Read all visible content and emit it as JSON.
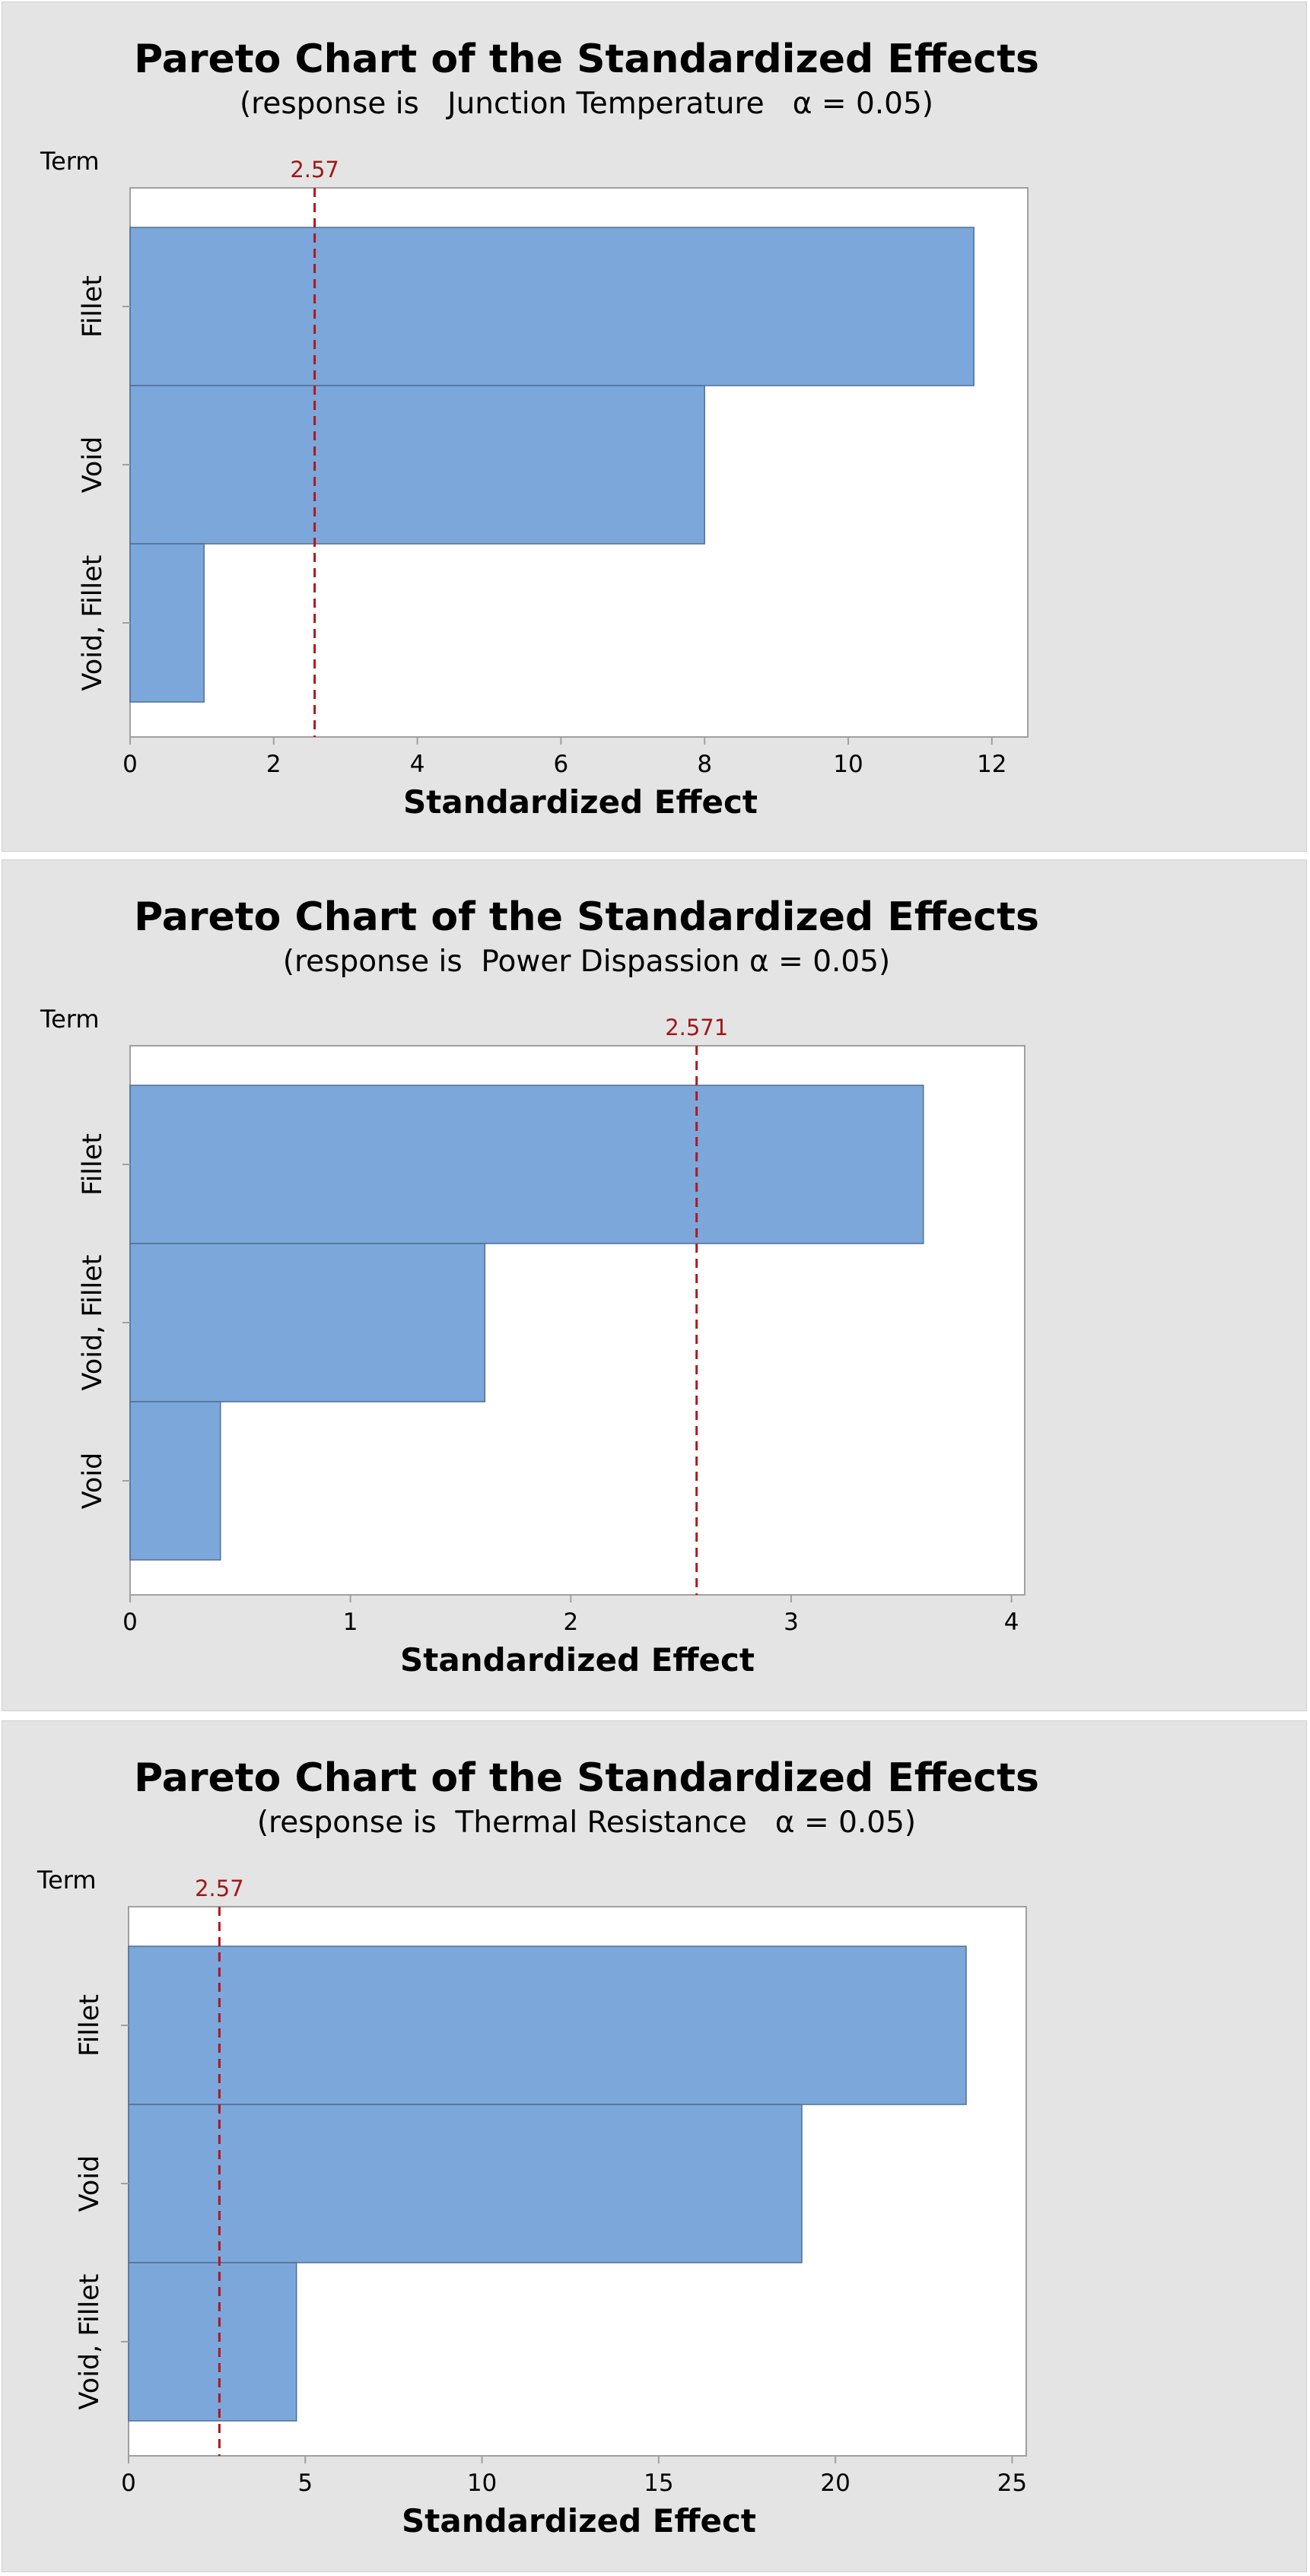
{
  "colors": {
    "panel_background": "#e4e4e4",
    "plot_background": "#ffffff",
    "bar_fill": "#7ba7da",
    "bar_stroke": "#4f6f94",
    "reference_line": "#b3161b",
    "axis": "#a0a0a0"
  },
  "chart_data": [
    {
      "type": "bar",
      "orientation": "horizontal",
      "title": "Pareto Chart of the Standardized Effects",
      "subtitle": "(response is   Junction Temperature   α = 0.05)",
      "term_label": "Term",
      "xlabel": "Standardized Effect",
      "categories": [
        "Fillet",
        "Void",
        "Void, Fillet"
      ],
      "values": [
        11.75,
        8.0,
        1.03
      ],
      "xlim": [
        0,
        12.5
      ],
      "xticks": [
        0,
        2,
        4,
        6,
        8,
        10,
        12
      ],
      "xtick_labels": [
        "0",
        "2",
        "4",
        "6",
        "8",
        "10",
        "12"
      ],
      "reference_line": {
        "value": 2.57,
        "label": "2.57",
        "style": "dashed"
      },
      "grid": false,
      "legend": "none"
    },
    {
      "type": "bar",
      "orientation": "horizontal",
      "title": "Pareto Chart of the Standardized Effects",
      "subtitle": "(response is  Power Dispassion α = 0.05)",
      "term_label": "Term",
      "xlabel": "Standardized Effect",
      "categories": [
        "Fillet",
        "Void, Fillet",
        "Void"
      ],
      "values": [
        3.6,
        1.61,
        0.41
      ],
      "xlim": [
        0,
        4.06
      ],
      "xticks": [
        0,
        1,
        2,
        3,
        4
      ],
      "xtick_labels": [
        "0",
        "1",
        "2",
        "3",
        "4"
      ],
      "reference_line": {
        "value": 2.571,
        "label": "2.571",
        "style": "dashed"
      },
      "grid": false,
      "legend": "none"
    },
    {
      "type": "bar",
      "orientation": "horizontal",
      "title": "Pareto Chart of the Standardized Effects",
      "subtitle": "(response is  Thermal Resistance   α = 0.05)",
      "term_label": "Term",
      "xlabel": "Standardized Effect",
      "categories": [
        "Fillet",
        "Void",
        "Void, Fillet"
      ],
      "values": [
        23.7,
        19.05,
        4.75
      ],
      "xlim": [
        0,
        25.4
      ],
      "xticks": [
        0,
        5,
        10,
        15,
        20,
        25
      ],
      "xtick_labels": [
        "0",
        "5",
        "10",
        "15",
        "20",
        "25"
      ],
      "reference_line": {
        "value": 2.57,
        "label": "2.57",
        "style": "dashed"
      },
      "grid": false,
      "legend": "none"
    }
  ]
}
